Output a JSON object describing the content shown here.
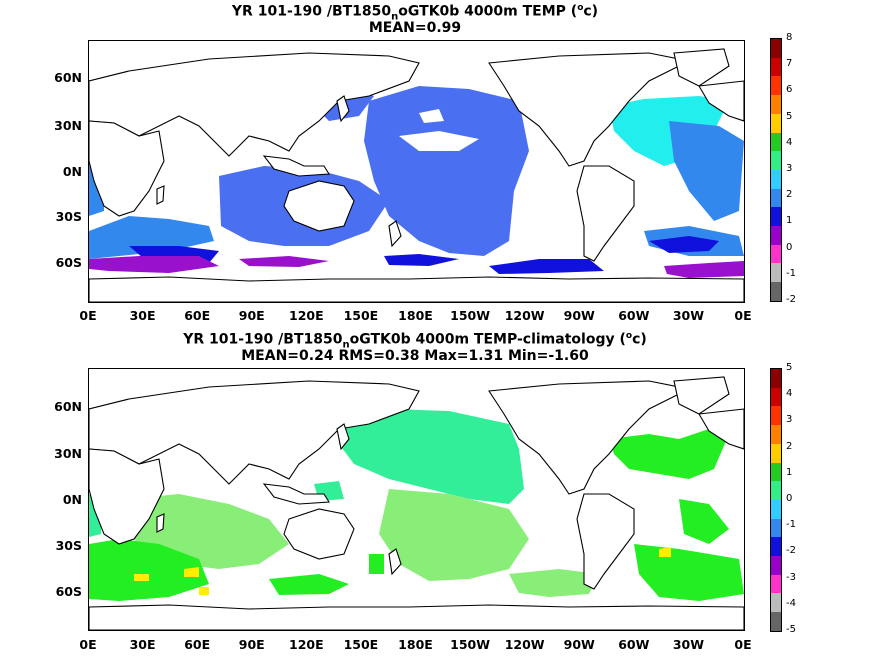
{
  "panels": [
    {
      "title_pre": "YR 101-190 /BT1850",
      "title_sub": "n",
      "title_post": "oGTK0b 4000m TEMP (",
      "title_unit_sup": "o",
      "title_unit_end": "c)",
      "subtitle": "MEAN=0.99",
      "colorbar_labels": [
        "8",
        "7",
        "6",
        "5",
        "4",
        "3",
        "2",
        "1",
        "0",
        "-1",
        "-2"
      ],
      "colorbar_colors": [
        "#8b0000",
        "#cc0000",
        "#ff3300",
        "#ff7f00",
        "#ffcc00",
        "#22cc22",
        "#33ee88",
        "#33ccff",
        "#3388ee",
        "#1111dd",
        "#9900cc",
        "#ff33cc",
        "#bbbbbb",
        "#666666"
      ]
    },
    {
      "title_pre": "YR 101-190 /BT1850",
      "title_sub": "n",
      "title_post": "oGTK0b 4000m TEMP-climatology (",
      "title_unit_sup": "o",
      "title_unit_end": "c)",
      "subtitle": "MEAN=0.24   RMS=0.38   Max=1.31   Min=-1.60",
      "colorbar_labels": [
        "5",
        "4",
        "3",
        "2",
        "1",
        "0",
        "-1",
        "-2",
        "-3",
        "-4",
        "-5"
      ],
      "colorbar_colors": [
        "#8b0000",
        "#cc0000",
        "#ff3300",
        "#ff7f00",
        "#ffcc00",
        "#22cc22",
        "#33ee88",
        "#33ccff",
        "#3388ee",
        "#1111dd",
        "#9900cc",
        "#ff33cc",
        "#bbbbbb",
        "#666666"
      ]
    }
  ],
  "lat_labels": [
    "60N",
    "30N",
    "0N",
    "30S",
    "60S"
  ],
  "lon_labels": [
    "0E",
    "30E",
    "60E",
    "90E",
    "120E",
    "150E",
    "180E",
    "150W",
    "120W",
    "90W",
    "60W",
    "30W",
    "0E"
  ],
  "fill_colors": {
    "light_blue": "#3388ee",
    "mid_blue": "#4a6ff0",
    "cyan": "#22eeee",
    "dark_blue": "#1111dd",
    "purple": "#9911cc",
    "green": "#22ee22",
    "light_green": "#88ee77",
    "mint": "#33ee99",
    "yellow": "#ffee00"
  }
}
